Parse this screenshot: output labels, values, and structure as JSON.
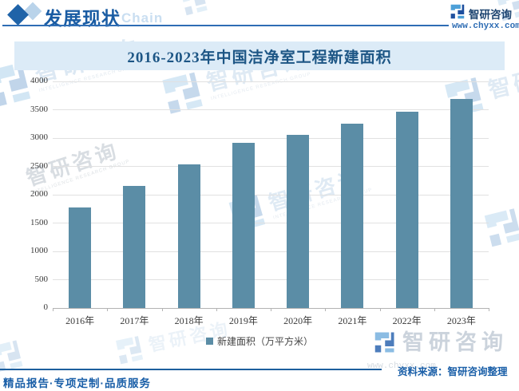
{
  "header": {
    "section_title": "发展现状",
    "section_subtitle": "Chain",
    "brand": "智研咨询",
    "website": "www.chyxx.com"
  },
  "chart_data": {
    "type": "bar",
    "title": "2016-2023年中国洁净室工程新建面积",
    "categories": [
      "2016年",
      "2017年",
      "2018年",
      "2019年",
      "2020年",
      "2021年",
      "2022年",
      "2023年"
    ],
    "values": [
      1780,
      2150,
      2540,
      2910,
      3050,
      3260,
      3470,
      3690
    ],
    "series_name": "新建面积（万平方米）",
    "xlabel": "",
    "ylabel": "",
    "ylim": [
      0,
      4000
    ],
    "yticks": [
      0,
      500,
      1000,
      1500,
      2000,
      2500,
      3000,
      3500,
      4000
    ],
    "grid": true,
    "legend_position": "bottom",
    "bar_color": "#5b8da6"
  },
  "watermark": {
    "brand": "智研咨询",
    "subtext": "INTELLIGENCE RESEARCH GROUP",
    "url": "www.chyxx.com"
  },
  "footer": {
    "tagline": "精品报告·专项定制·品质服务",
    "source": "资料来源：智研咨询整理"
  },
  "colors": {
    "accent_blue": "#1e5fa6",
    "bar": "#5b8da6",
    "title_band": "#dcebf7",
    "watermark_blue": "#bdd6ea"
  }
}
